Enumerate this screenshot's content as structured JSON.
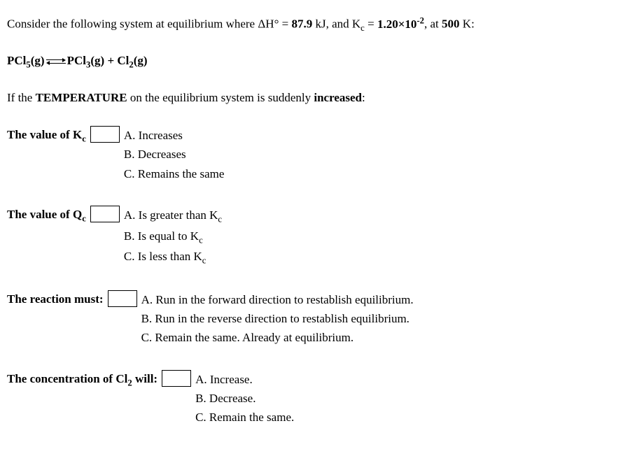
{
  "intro": {
    "prefix": "Consider the following system at equilibrium where ",
    "dh_label": "ΔH°",
    "dh_value": "87.9",
    "dh_unit": "kJ",
    "kc_label": "K",
    "kc_sub": "c",
    "kc_value": "1.20×10",
    "kc_exp": "-2",
    "temp": "500",
    "temp_unit": "K"
  },
  "equation": {
    "reactant": "PCl",
    "reactant_sub": "5",
    "phase": "(g)",
    "product1": "PCl",
    "product1_sub": "3",
    "product2": "Cl",
    "product2_sub": "2"
  },
  "condition": {
    "prefix": "If the ",
    "emphasis": "TEMPERATURE",
    "middle": " on the equilibrium system is suddenly ",
    "action": "increased",
    "suffix": ":"
  },
  "questions": {
    "q1": {
      "prompt_prefix": "The value of K",
      "prompt_sub": "c",
      "options": {
        "a": "A. Increases",
        "b": "B. Decreases",
        "c": "C. Remains the same"
      }
    },
    "q2": {
      "prompt_prefix": "The value of Q",
      "prompt_sub": "c",
      "options": {
        "a_prefix": "A. Is greater than K",
        "b_prefix": "B. Is equal to K",
        "c_prefix": "C. Is less than K",
        "sub": "c"
      }
    },
    "q3": {
      "prompt": "The reaction must:",
      "options": {
        "a": "A. Run in the forward direction to restablish equilibrium.",
        "b": "B. Run in the reverse direction to restablish equilibrium.",
        "c": "C. Remain the same. Already at equilibrium."
      }
    },
    "q4": {
      "prompt_prefix": "The concentration of Cl",
      "prompt_sub": "2",
      "prompt_suffix": " will:",
      "options": {
        "a": "A. Increase.",
        "b": "B. Decrease.",
        "c": "C. Remain the same."
      }
    }
  }
}
